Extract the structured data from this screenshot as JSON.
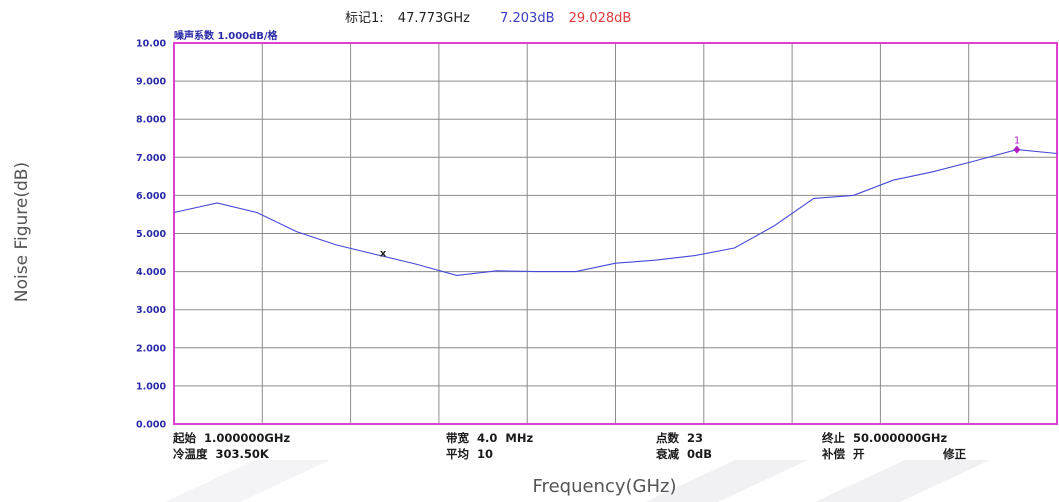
{
  "marker_readout": {
    "label": "标记1:",
    "frequency": "47.773GHz",
    "noise_figure": "7.203dB",
    "gain": "29.028dB"
  },
  "scale_label": "噪声系数   1.000dB/格",
  "axis_titles": {
    "y": "Noise Figure(dB)",
    "x": "Frequency(GHz)"
  },
  "status": {
    "start_label": "起始",
    "start_value": "1.000000GHz",
    "cold_temp_label": "冷温度",
    "cold_temp_value": "303.50K",
    "bandwidth_label": "带宽",
    "bandwidth_value": "4.0  MHz",
    "average_label": "平均",
    "average_value": "10",
    "points_label": "点数",
    "points_value": "23",
    "atten_label": "衰减",
    "atten_value": "0dB",
    "stop_label": "终止",
    "stop_value": "50.000000GHz",
    "comp_label": "补偿",
    "comp_value": "开",
    "correction_label": "修正"
  },
  "colors": {
    "frame": "#e040d0",
    "grid": "#8c8c8c",
    "trace": "#4848d8",
    "tick_text": "#2a2aa8",
    "marker": "#b020c0",
    "gain_text": "#e03a3a",
    "nf_text": "#3b3bc4"
  },
  "chart_data": {
    "type": "line",
    "title": "",
    "xlabel": "Frequency(GHz)",
    "ylabel": "Noise Figure(dB)",
    "xlim": [
      1,
      50
    ],
    "ylim": [
      0,
      10
    ],
    "yticks": [
      "0.000",
      "1.000",
      "2.000",
      "3.000",
      "4.000",
      "5.000",
      "6.000",
      "7.000",
      "8.000",
      "9.000",
      "10.00"
    ],
    "grid": true,
    "series": [
      {
        "x": [
          1,
          3.4,
          5.6,
          7.8,
          10,
          12.2,
          14.4,
          16.7,
          18.9,
          21.1,
          23.3,
          25.5,
          27.7,
          29.9,
          32.1,
          34.3,
          36.5,
          38.7,
          40.9,
          43.1,
          45.4,
          47.773,
          50
        ],
        "values": [
          5.55,
          5.8,
          5.55,
          5.05,
          4.7,
          4.45,
          4.2,
          3.9,
          4.02,
          4.0,
          4.0,
          4.22,
          4.3,
          4.42,
          4.62,
          5.2,
          5.92,
          6.0,
          6.4,
          6.62,
          6.9,
          7.203,
          7.1
        ]
      }
    ],
    "marker": {
      "label": "1",
      "x": 47.773,
      "y": 7.203
    },
    "reference_marker": {
      "label": "x",
      "x": 12.2,
      "y": 4.5
    }
  }
}
